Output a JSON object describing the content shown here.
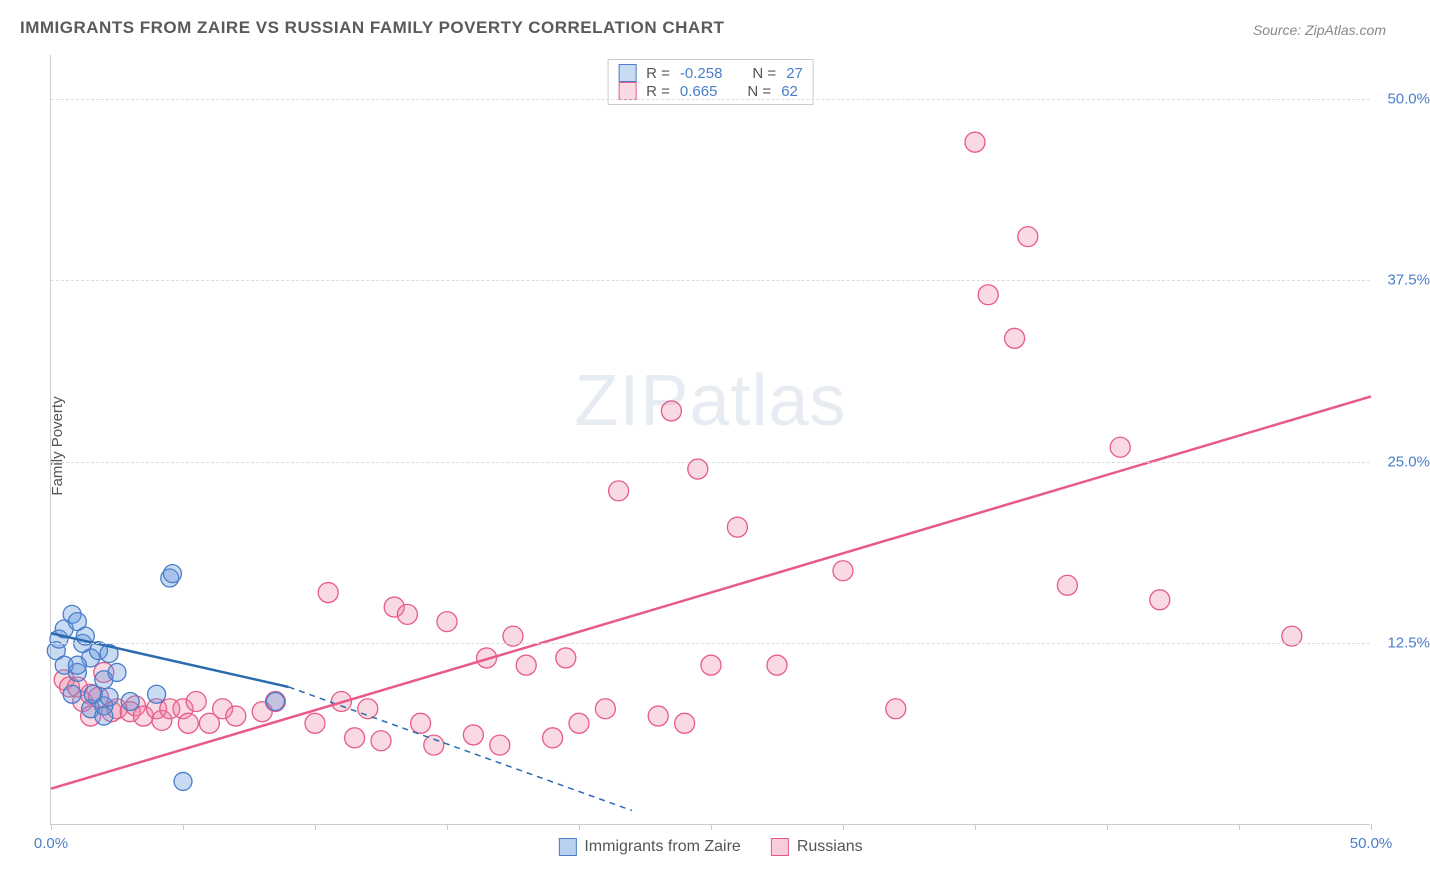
{
  "title": "IMMIGRANTS FROM ZAIRE VS RUSSIAN FAMILY POVERTY CORRELATION CHART",
  "source": "Source: ZipAtlas.com",
  "ylabel": "Family Poverty",
  "watermark_bold": "ZIP",
  "watermark_light": "atlas",
  "chart": {
    "type": "scatter",
    "xlim": [
      0,
      50
    ],
    "ylim": [
      0,
      53
    ],
    "xtick_positions": [
      0,
      5,
      10,
      15,
      20,
      25,
      30,
      35,
      40,
      45,
      50
    ],
    "xtick_labels": {
      "0": "0.0%",
      "50": "50.0%"
    },
    "ytick_positions": [
      12.5,
      25,
      37.5,
      50
    ],
    "ytick_labels": {
      "12.5": "12.5%",
      "25": "25.0%",
      "37.5": "37.5%",
      "50": "50.0%"
    },
    "grid_color": "#dddddd",
    "background_color": "#ffffff",
    "series": [
      {
        "name": "Immigrants from Zaire",
        "color_fill": "rgba(100,150,220,0.35)",
        "color_stroke": "#4a7ec9",
        "marker_radius": 9,
        "R": "-0.258",
        "N": "27",
        "trend": {
          "x1": 0,
          "y1": 13.2,
          "x2": 9,
          "y2": 9.5,
          "x2_dash": 22,
          "y2_dash": 1.0
        },
        "points": [
          [
            0.2,
            12.0
          ],
          [
            0.3,
            12.8
          ],
          [
            0.5,
            11.0
          ],
          [
            0.5,
            13.5
          ],
          [
            0.8,
            14.5
          ],
          [
            1.0,
            14.0
          ],
          [
            1.0,
            10.5
          ],
          [
            1.2,
            12.5
          ],
          [
            1.3,
            13.0
          ],
          [
            1.5,
            11.5
          ],
          [
            1.5,
            8.0
          ],
          [
            1.6,
            9.0
          ],
          [
            1.8,
            12.0
          ],
          [
            2.0,
            10.0
          ],
          [
            2.0,
            8.2
          ],
          [
            2.2,
            11.8
          ],
          [
            2.5,
            10.5
          ],
          [
            2.0,
            7.5
          ],
          [
            3.0,
            8.5
          ],
          [
            4.0,
            9.0
          ],
          [
            4.5,
            17.0
          ],
          [
            4.6,
            17.3
          ],
          [
            5.0,
            3.0
          ],
          [
            8.5,
            8.5
          ],
          [
            0.8,
            9.0
          ],
          [
            1.0,
            11.0
          ],
          [
            2.2,
            8.8
          ]
        ]
      },
      {
        "name": "Russians",
        "color_fill": "rgba(235,130,160,0.30)",
        "color_stroke": "#e75a8a",
        "marker_radius": 10,
        "R": "0.665",
        "N": "62",
        "trend": {
          "x1": 0,
          "y1": 2.5,
          "x2": 50,
          "y2": 29.5
        },
        "points": [
          [
            0.5,
            10.0
          ],
          [
            0.7,
            9.5
          ],
          [
            1.0,
            9.5
          ],
          [
            1.2,
            8.5
          ],
          [
            1.5,
            7.5
          ],
          [
            1.5,
            9.0
          ],
          [
            1.8,
            8.8
          ],
          [
            2.0,
            10.5
          ],
          [
            2.3,
            7.8
          ],
          [
            2.5,
            8.0
          ],
          [
            3.0,
            7.8
          ],
          [
            3.2,
            8.2
          ],
          [
            3.5,
            7.5
          ],
          [
            4.0,
            8.0
          ],
          [
            4.2,
            7.2
          ],
          [
            4.5,
            8.0
          ],
          [
            5.0,
            8.0
          ],
          [
            5.2,
            7.0
          ],
          [
            5.5,
            8.5
          ],
          [
            6.0,
            7.0
          ],
          [
            6.5,
            8.0
          ],
          [
            7.0,
            7.5
          ],
          [
            8.0,
            7.8
          ],
          [
            8.5,
            8.5
          ],
          [
            10.0,
            7.0
          ],
          [
            10.5,
            16.0
          ],
          [
            11.0,
            8.5
          ],
          [
            11.5,
            6.0
          ],
          [
            12.0,
            8.0
          ],
          [
            12.5,
            5.8
          ],
          [
            13.0,
            15.0
          ],
          [
            13.5,
            14.5
          ],
          [
            14.0,
            7.0
          ],
          [
            14.5,
            5.5
          ],
          [
            15.0,
            14.0
          ],
          [
            16.0,
            6.2
          ],
          [
            16.5,
            11.5
          ],
          [
            17.0,
            5.5
          ],
          [
            17.5,
            13.0
          ],
          [
            18.0,
            11.0
          ],
          [
            19.0,
            6.0
          ],
          [
            19.5,
            11.5
          ],
          [
            20.0,
            7.0
          ],
          [
            21.0,
            8.0
          ],
          [
            21.5,
            23.0
          ],
          [
            23.0,
            7.5
          ],
          [
            23.5,
            28.5
          ],
          [
            24.0,
            7.0
          ],
          [
            24.5,
            24.5
          ],
          [
            25.0,
            11.0
          ],
          [
            26.0,
            20.5
          ],
          [
            27.5,
            11.0
          ],
          [
            30.0,
            17.5
          ],
          [
            32.0,
            8.0
          ],
          [
            35.0,
            47.0
          ],
          [
            35.5,
            36.5
          ],
          [
            36.5,
            33.5
          ],
          [
            37.0,
            40.5
          ],
          [
            38.5,
            16.5
          ],
          [
            40.5,
            26.0
          ],
          [
            42.0,
            15.5
          ],
          [
            47.0,
            13.0
          ]
        ]
      }
    ]
  },
  "corr_legend_label_R": "R =",
  "corr_legend_label_N": "N =",
  "bottom_legend": [
    {
      "label": "Immigrants from Zaire",
      "fill": "rgba(100,150,220,0.45)",
      "stroke": "#4a7ec9"
    },
    {
      "label": "Russians",
      "fill": "rgba(235,130,160,0.40)",
      "stroke": "#e75a8a"
    }
  ]
}
